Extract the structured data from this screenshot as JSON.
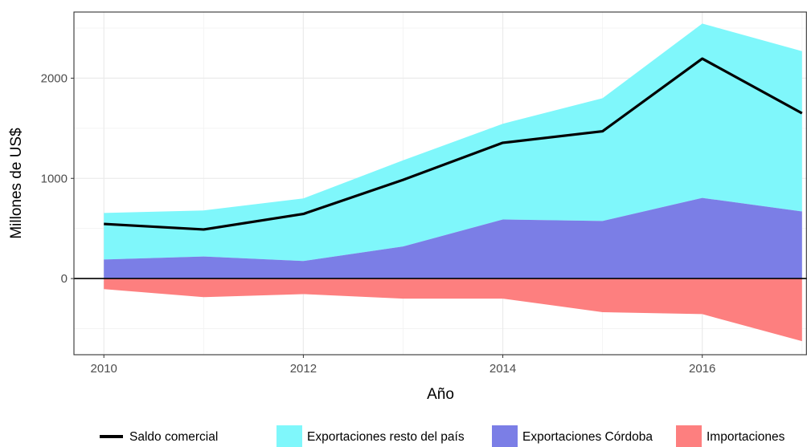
{
  "chart_data": {
    "type": "area",
    "xlabel": "Año",
    "ylabel": "Millones de US$",
    "xlim": [
      2009.7,
      2017.05
    ],
    "ylim": [
      -760,
      2660
    ],
    "x_ticks": [
      2010,
      2012,
      2014,
      2016
    ],
    "y_ticks": [
      0,
      1000,
      2000
    ],
    "grid": true,
    "legend_position": "bottom",
    "x": [
      2010,
      2011,
      2012,
      2013,
      2014,
      2015,
      2016,
      2017
    ],
    "series": [
      {
        "name": "Exportaciones resto del país",
        "kind": "area",
        "color": "#7ff7fb",
        "values": [
          465,
          460,
          625,
          860,
          955,
          1225,
          1740,
          1600
        ],
        "stacked_top": [
          655,
          680,
          800,
          1180,
          1545,
          1800,
          2545,
          2270
        ]
      },
      {
        "name": "Exportaciones Córdoba",
        "kind": "area",
        "color": "#7b7ee6",
        "values": [
          190,
          220,
          175,
          320,
          590,
          575,
          805,
          670
        ]
      },
      {
        "name": "Importaciones",
        "kind": "area",
        "color": "#fd7f7f",
        "values": [
          -105,
          -185,
          -155,
          -200,
          -200,
          -335,
          -355,
          -625
        ]
      },
      {
        "name": "Saldo comercial",
        "kind": "line",
        "color": "#000000",
        "values": [
          545,
          490,
          645,
          985,
          1355,
          1470,
          2195,
          1650
        ]
      }
    ]
  }
}
